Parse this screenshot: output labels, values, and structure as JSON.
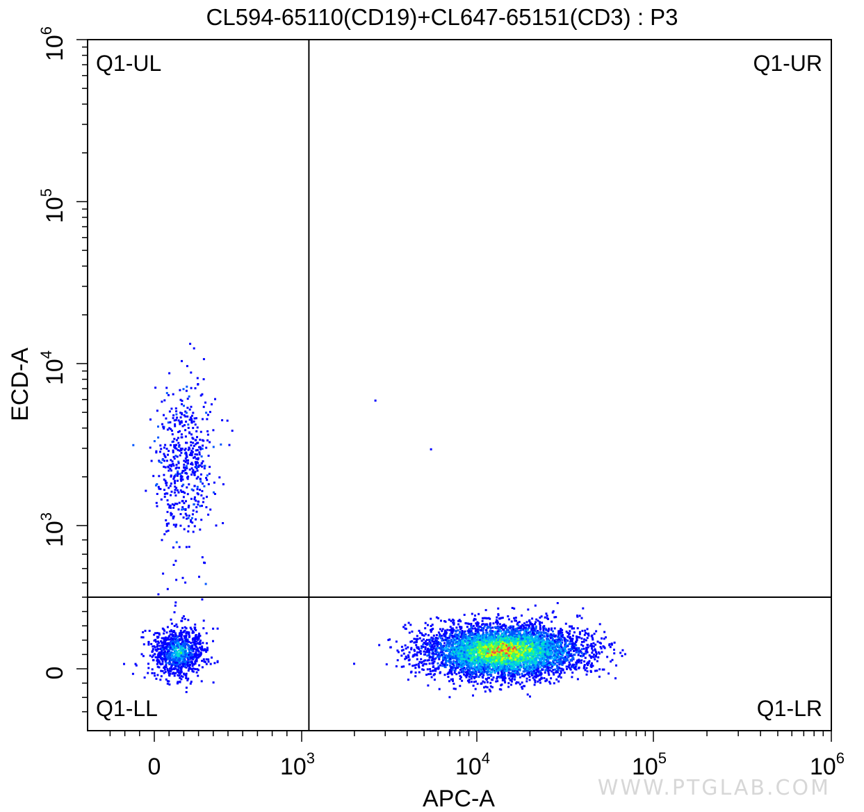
{
  "chart_data": {
    "type": "scatter",
    "title": "CL594-65110(CD19)+CL647-65151(CD3) : P3",
    "xlabel": "APC-A",
    "ylabel": "ECD-A",
    "x_scale": "biexponential (linear near 0, log above 10^3)",
    "y_scale": "biexponential (linear near 0, log above 10^3)",
    "xlim": [
      -400,
      1000000
    ],
    "ylim": [
      -400,
      1000000
    ],
    "x_ticks": [
      {
        "base": "0",
        "exp": ""
      },
      {
        "base": "10",
        "exp": "3"
      },
      {
        "base": "10",
        "exp": "4"
      },
      {
        "base": "10",
        "exp": "5"
      },
      {
        "base": "10",
        "exp": "6"
      }
    ],
    "y_ticks": [
      {
        "base": "0",
        "exp": ""
      },
      {
        "base": "10",
        "exp": "3"
      },
      {
        "base": "10",
        "exp": "4"
      },
      {
        "base": "10",
        "exp": "5"
      },
      {
        "base": "10",
        "exp": "6"
      }
    ],
    "gates": {
      "x_threshold": 1100,
      "y_threshold": 500
    },
    "quadrants": {
      "upper_left": "Q1-UL",
      "upper_right": "Q1-UR",
      "lower_left": "Q1-LL",
      "lower_right": "Q1-LR"
    },
    "populations": [
      {
        "name": "",
        "x_center": 200,
        "y_center": 2500,
        "spread_x": 100,
        "spread_y_log": 0.25,
        "count": 520,
        "density": "sparse"
      },
      {
        "name": "",
        "x_center": 160,
        "y_center": 120,
        "spread_x": 90,
        "spread_y": 90,
        "count": 900,
        "density": "medium"
      },
      {
        "name": "",
        "x_center": 14000,
        "y_center": 130,
        "spread_x_log": 0.22,
        "spread_y": 90,
        "count": 5200,
        "density": "dense"
      }
    ],
    "outliers": [
      {
        "x": 2600,
        "y": 6000
      },
      {
        "x": 5400,
        "y": 3000
      }
    ],
    "grid": false,
    "legend": "none",
    "density_colors": [
      "#0000ff",
      "#0055ff",
      "#00aaff",
      "#00e0d0",
      "#40ff60",
      "#d0ff00",
      "#ff4040"
    ]
  },
  "watermark": "WWW.PTGLAB.COM"
}
